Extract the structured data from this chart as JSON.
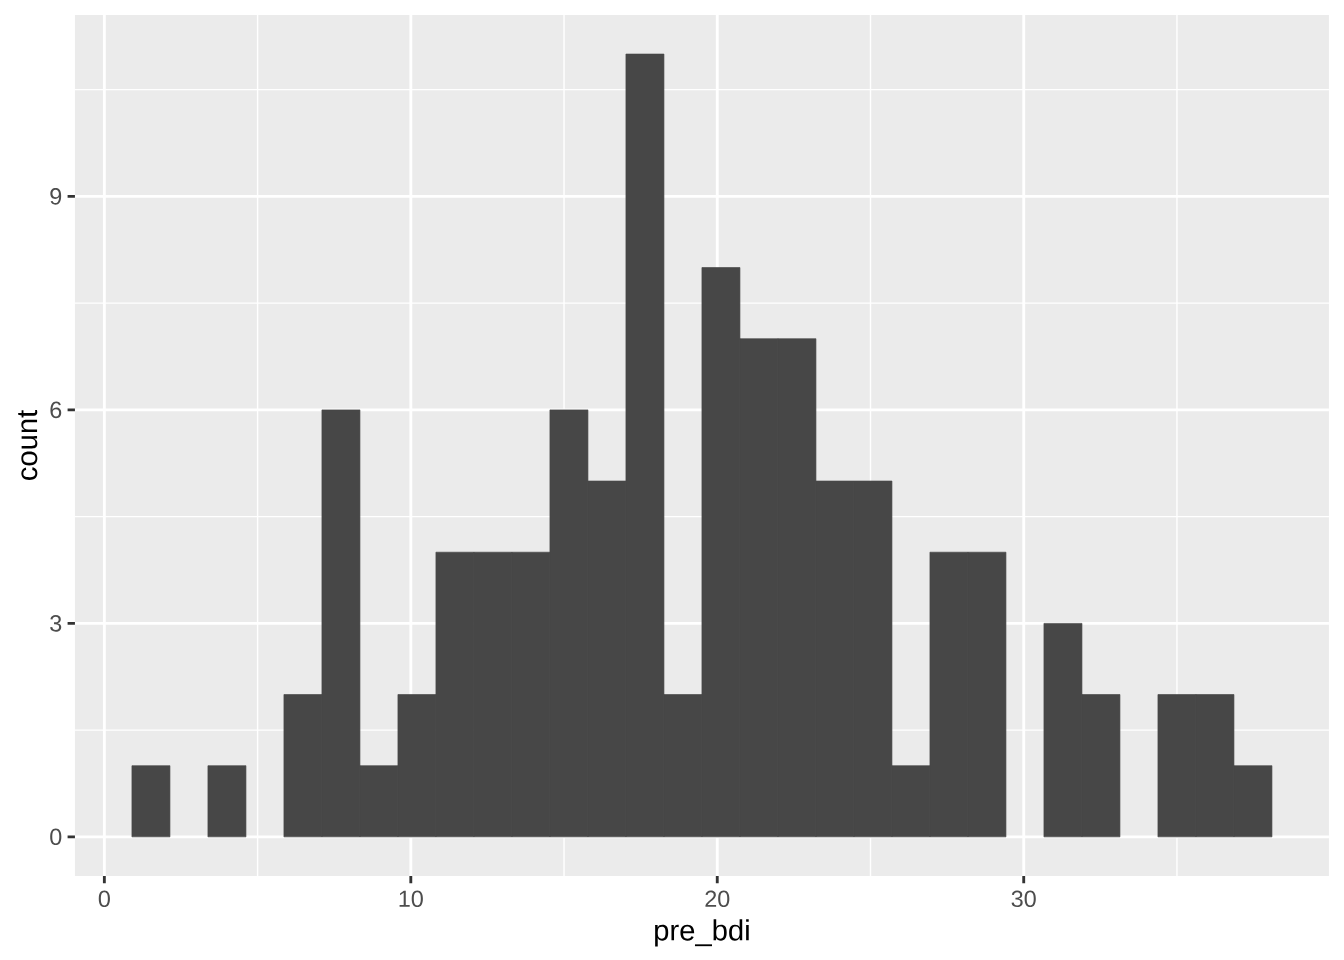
{
  "chart_data": {
    "type": "histogram",
    "xlabel": "pre_bdi",
    "ylabel": "count",
    "bins": [
      0.9,
      2.14,
      3.38,
      4.62,
      5.86,
      7.1,
      8.34,
      9.58,
      10.82,
      12.06,
      13.3,
      14.54,
      15.78,
      17.02,
      18.26,
      19.5,
      20.74,
      21.98,
      23.22,
      24.46,
      25.7,
      26.94,
      28.18,
      29.42,
      30.66,
      31.9,
      33.14,
      34.38,
      35.62,
      36.86,
      38.1
    ],
    "values": [
      1,
      0,
      1,
      0,
      2,
      6,
      1,
      2,
      4,
      4,
      4,
      6,
      5,
      11,
      2,
      8,
      7,
      7,
      5,
      5,
      1,
      4,
      4,
      0,
      3,
      2,
      0,
      2,
      2,
      1
    ],
    "color": "#474747",
    "xlim": [
      -0.96,
      39.96
    ],
    "ylim": [
      -0.55,
      11.55
    ],
    "xticks": [
      0,
      10,
      20,
      30
    ],
    "yticks": [
      0,
      3,
      6,
      9
    ],
    "grid": true
  }
}
